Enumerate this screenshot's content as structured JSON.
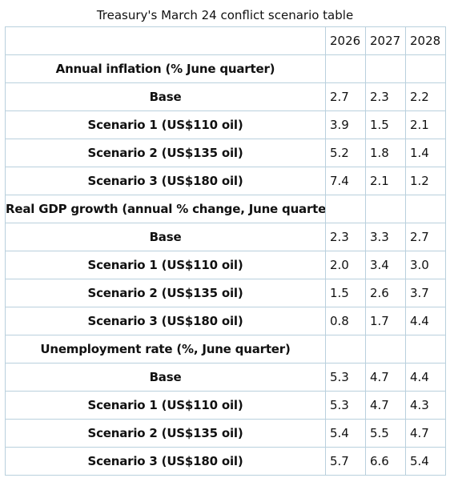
{
  "title": "Treasury's March 24 conflict scenario table",
  "table": {
    "columns": [
      "2026",
      "2027",
      "2028"
    ],
    "sections": [
      {
        "heading": "Annual inflation (% June quarter)",
        "rows": [
          {
            "label": "Base",
            "values": [
              "2.7",
              "2.3",
              "2.2"
            ]
          },
          {
            "label": "Scenario 1 (US$110 oil)",
            "values": [
              "3.9",
              "1.5",
              "2.1"
            ]
          },
          {
            "label": "Scenario 2 (US$135 oil)",
            "values": [
              "5.2",
              "1.8",
              "1.4"
            ]
          },
          {
            "label": "Scenario 3 (US$180 oil)",
            "values": [
              "7.4",
              "2.1",
              "1.2"
            ]
          }
        ]
      },
      {
        "heading": "Real GDP growth (annual % change, June quarter)",
        "rows": [
          {
            "label": "Base",
            "values": [
              "2.3",
              "3.3",
              "2.7"
            ]
          },
          {
            "label": "Scenario 1 (US$110 oil)",
            "values": [
              "2.0",
              "3.4",
              "3.0"
            ]
          },
          {
            "label": "Scenario 2 (US$135 oil)",
            "values": [
              "1.5",
              "2.6",
              "3.7"
            ]
          },
          {
            "label": "Scenario 3 (US$180 oil)",
            "values": [
              "0.8",
              "1.7",
              "4.4"
            ]
          }
        ]
      },
      {
        "heading": "Unemployment rate (%, June quarter)",
        "rows": [
          {
            "label": "Base",
            "values": [
              "5.3",
              "4.7",
              "4.4"
            ]
          },
          {
            "label": "Scenario 1 (US$110 oil)",
            "values": [
              "5.3",
              "4.7",
              "4.3"
            ]
          },
          {
            "label": "Scenario 2 (US$135 oil)",
            "values": [
              "5.4",
              "5.5",
              "4.7"
            ]
          },
          {
            "label": "Scenario 3 (US$180 oil)",
            "values": [
              "5.7",
              "6.6",
              "5.4"
            ]
          }
        ]
      }
    ]
  }
}
